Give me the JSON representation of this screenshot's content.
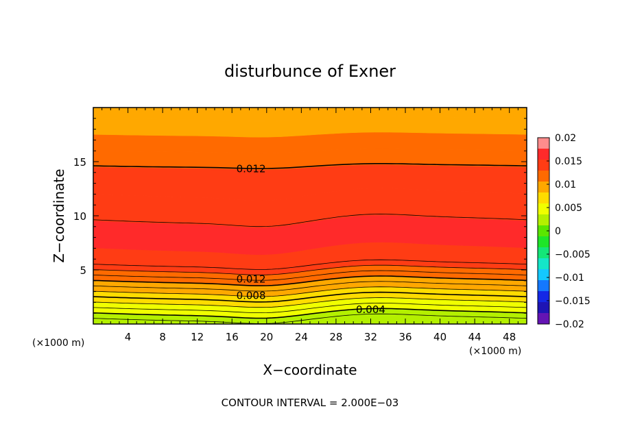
{
  "chart_data": {
    "type": "heatmap",
    "title": "disturbunce of Exner",
    "xlabel": "X−coordinate",
    "ylabel": "Z−coordinate",
    "x_unit": "(×1000 m)",
    "x_unit_right": "(×1000 m)",
    "y_unit": "(×1000 m)",
    "xlim": [
      0,
      50
    ],
    "ylim": [
      0,
      20
    ],
    "x_ticks": [
      4,
      8,
      12,
      16,
      20,
      24,
      28,
      32,
      36,
      40,
      44,
      48
    ],
    "y_ticks": [
      5,
      10,
      15
    ],
    "footer": "CONTOUR INTERVAL = 2.000E−03",
    "colorbar": {
      "range": [
        -0.02,
        0.02
      ],
      "tick_values": [
        0.02,
        0.015,
        0.01,
        0.005,
        0,
        -0.005,
        -0.01,
        -0.015,
        -0.02
      ],
      "tick_labels": [
        "0.02",
        "0.015",
        "0.01",
        "0.005",
        "0",
        "−0.005",
        "−0.01",
        "−0.015",
        "−0.02"
      ],
      "colors": [
        "#ff8c8c",
        "#ff2a2a",
        "#ff3c14",
        "#ff6a00",
        "#ffa800",
        "#ffdc00",
        "#f0ff00",
        "#b4f000",
        "#5ae600",
        "#1ee628",
        "#14e678",
        "#14e6c8",
        "#14c8ff",
        "#1478ff",
        "#1428e6",
        "#1e14b4",
        "#6414b4"
      ]
    },
    "contour_labels": [
      {
        "text": "0.012",
        "x": 18.2,
        "z": 14.4
      },
      {
        "text": "0.012",
        "x": 18.2,
        "z": 4.2
      },
      {
        "text": "0.008",
        "x": 18.2,
        "z": 2.7
      },
      {
        "text": "0.004",
        "x": 32.0,
        "z": 1.4
      }
    ],
    "bands": [
      {
        "z": 0.0,
        "value": 0.0015
      },
      {
        "z": 0.5,
        "value": 0.002
      },
      {
        "z": 1.0,
        "value": 0.004
      },
      {
        "z": 1.5,
        "value": 0.005
      },
      {
        "z": 2.0,
        "value": 0.007
      },
      {
        "z": 2.5,
        "value": 0.008
      },
      {
        "z": 3.0,
        "value": 0.009
      },
      {
        "z": 3.5,
        "value": 0.0105
      },
      {
        "z": 4.0,
        "value": 0.0115
      },
      {
        "z": 4.5,
        "value": 0.0125
      },
      {
        "z": 5.0,
        "value": 0.0135
      },
      {
        "z": 5.5,
        "value": 0.0145
      },
      {
        "z": 7.0,
        "value": 0.016
      },
      {
        "z": 9.5,
        "value": 0.015
      },
      {
        "z": 12.0,
        "value": 0.0135
      },
      {
        "z": 14.5,
        "value": 0.0125
      },
      {
        "z": 16.0,
        "value": 0.0115
      },
      {
        "z": 17.5,
        "value": 0.0105
      },
      {
        "z": 19.0,
        "value": 0.0098
      },
      {
        "z": 20.0,
        "value": 0.0098
      }
    ]
  }
}
